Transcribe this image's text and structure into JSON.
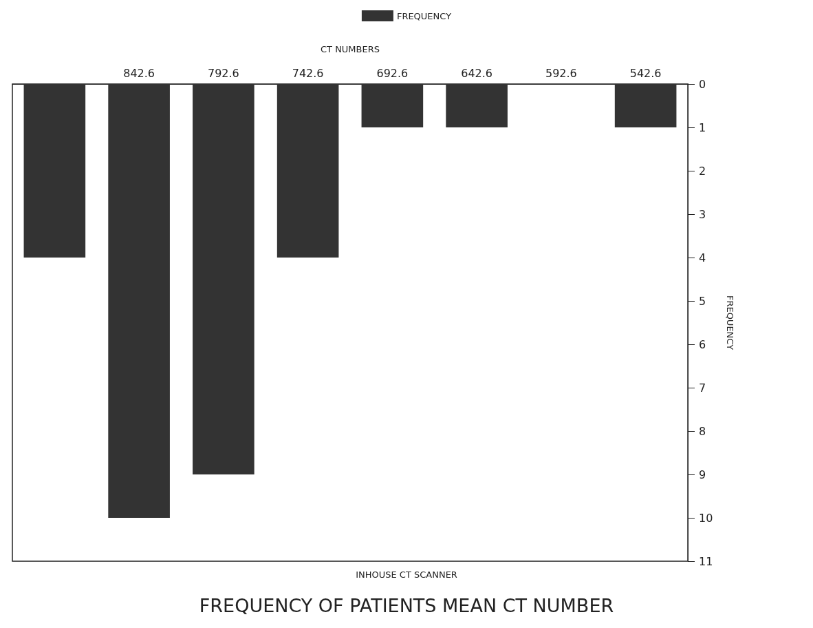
{
  "chart_data": {
    "type": "bar",
    "title": "FREQUENCY OF PATIENTS MEAN CT NUMBER",
    "subtitle": "INHOUSE CT SCANNER",
    "xlabel": "CT NUMBERS",
    "ylabel": "FREQUENCY",
    "categories": [
      null,
      "842.6",
      "792.6",
      "742.6",
      "692.6",
      "642.6",
      "592.6",
      "542.6"
    ],
    "series": [
      {
        "name": "FREQUENCY",
        "color": "#333333",
        "values": [
          4,
          10,
          9,
          4,
          1,
          1,
          0,
          1
        ]
      }
    ],
    "ylim": [
      11,
      0
    ],
    "yticks": [
      0,
      1,
      2,
      3,
      4,
      5,
      6,
      7,
      8,
      9,
      10,
      11
    ],
    "grid": false,
    "legend": "top"
  }
}
